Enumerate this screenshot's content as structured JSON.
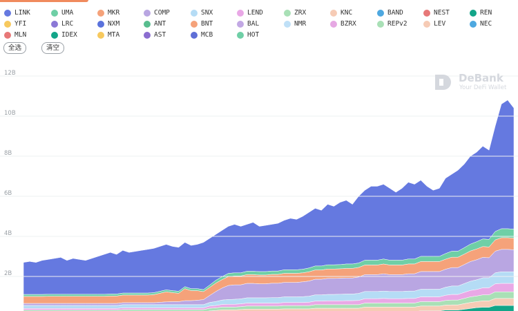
{
  "legend": [
    {
      "name": "LINK",
      "color": "#6579e0"
    },
    {
      "name": "UMA",
      "color": "#6fcfa6"
    },
    {
      "name": "MKR",
      "color": "#f5a27a"
    },
    {
      "name": "COMP",
      "color": "#b9a6e2"
    },
    {
      "name": "SNX",
      "color": "#b5dcf5"
    },
    {
      "name": "LEND",
      "color": "#e9a8e6"
    },
    {
      "name": "ZRX",
      "color": "#a9e0b6"
    },
    {
      "name": "KNC",
      "color": "#f6cbb5"
    },
    {
      "name": "BAND",
      "color": "#4ea8e0"
    },
    {
      "name": "NEST",
      "color": "#e77878"
    },
    {
      "name": "REN",
      "color": "#13a589"
    },
    {
      "name": "YFI",
      "color": "#f7c95e"
    },
    {
      "name": "LRC",
      "color": "#8b78d6"
    },
    {
      "name": "NXM",
      "color": "#5a72dc"
    },
    {
      "name": "ANT",
      "color": "#58bd8e"
    },
    {
      "name": "BNT",
      "color": "#f5a27a"
    },
    {
      "name": "BAL",
      "color": "#c2a8e4"
    },
    {
      "name": "NMR",
      "color": "#bfe0f7"
    },
    {
      "name": "BZRX",
      "color": "#e6a8e3"
    },
    {
      "name": "REPv2",
      "color": "#a9e0b6"
    },
    {
      "name": "LEV",
      "color": "#f6cbb5"
    },
    {
      "name": "NEC",
      "color": "#4ea8e0"
    },
    {
      "name": "MLN",
      "color": "#e77878"
    },
    {
      "name": "IDEX",
      "color": "#13a589"
    },
    {
      "name": "MTA",
      "color": "#f7c95e"
    },
    {
      "name": "AST",
      "color": "#8b6dd0"
    },
    {
      "name": "MCB",
      "color": "#5f6fd6"
    },
    {
      "name": "HOT",
      "color": "#6fcfa6"
    }
  ],
  "buttons": {
    "select_all": "全选",
    "clear": "清空"
  },
  "watermark": {
    "title": "DeBank",
    "subtitle": "Your DeFi Wallet"
  },
  "chart_data": {
    "type": "area",
    "stacked": true,
    "ylabel": "",
    "ylim": [
      0,
      12
    ],
    "yticks": [
      "2B",
      "4B",
      "6B",
      "8B",
      "10B",
      "12B"
    ],
    "x_points": 80,
    "total": [
      2.7,
      2.75,
      2.7,
      2.8,
      2.85,
      2.9,
      2.95,
      2.8,
      2.9,
      2.85,
      2.8,
      2.9,
      3.0,
      3.1,
      3.2,
      3.1,
      3.3,
      3.2,
      3.25,
      3.3,
      3.35,
      3.4,
      3.5,
      3.6,
      3.5,
      3.45,
      3.7,
      3.55,
      3.6,
      3.7,
      3.9,
      4.1,
      4.3,
      4.5,
      4.6,
      4.5,
      4.6,
      4.7,
      4.5,
      4.55,
      4.6,
      4.65,
      4.8,
      4.9,
      4.85,
      5.0,
      5.2,
      5.4,
      5.3,
      5.6,
      5.5,
      5.7,
      5.8,
      5.6,
      6.0,
      6.3,
      6.5,
      6.5,
      6.6,
      6.4,
      6.2,
      6.4,
      6.7,
      6.6,
      6.8,
      6.5,
      6.3,
      6.4,
      6.9,
      7.1,
      7.3,
      7.6,
      8.0,
      8.2,
      8.5,
      8.3,
      9.5,
      10.6,
      10.8,
      10.4
    ],
    "series": [
      {
        "name": "BAND",
        "values": [
          0.05,
          0.05,
          0.05,
          0.05,
          0.05,
          0.05,
          0.05,
          0.05,
          0.05,
          0.05,
          0.05,
          0.05,
          0.05,
          0.05,
          0.05,
          0.05,
          0.06,
          0.06,
          0.06,
          0.06,
          0.06,
          0.06,
          0.06,
          0.06,
          0.06,
          0.06,
          0.06,
          0.06,
          0.06,
          0.06,
          0.06,
          0.06,
          0.07,
          0.07,
          0.07,
          0.07,
          0.08,
          0.08,
          0.08,
          0.08,
          0.08,
          0.08,
          0.08,
          0.08,
          0.08,
          0.08,
          0.08,
          0.09,
          0.09,
          0.09,
          0.09,
          0.09,
          0.09,
          0.09,
          0.09,
          0.1,
          0.1,
          0.1,
          0.1,
          0.1,
          0.1,
          0.1,
          0.1,
          0.1,
          0.1,
          0.1,
          0.1,
          0.1,
          0.12,
          0.12,
          0.12,
          0.14,
          0.15,
          0.16,
          0.16,
          0.16,
          0.2,
          0.2,
          0.2,
          0.2
        ]
      },
      {
        "name": "REN",
        "values": [
          0.05,
          0.05,
          0.05,
          0.05,
          0.05,
          0.05,
          0.05,
          0.05,
          0.05,
          0.05,
          0.05,
          0.05,
          0.05,
          0.05,
          0.05,
          0.05,
          0.05,
          0.05,
          0.05,
          0.05,
          0.05,
          0.05,
          0.05,
          0.05,
          0.05,
          0.05,
          0.05,
          0.05,
          0.05,
          0.05,
          0.08,
          0.1,
          0.1,
          0.1,
          0.1,
          0.12,
          0.12,
          0.12,
          0.12,
          0.12,
          0.12,
          0.12,
          0.12,
          0.12,
          0.12,
          0.12,
          0.12,
          0.12,
          0.12,
          0.12,
          0.12,
          0.12,
          0.12,
          0.12,
          0.12,
          0.15,
          0.15,
          0.15,
          0.15,
          0.15,
          0.15,
          0.15,
          0.15,
          0.15,
          0.18,
          0.18,
          0.18,
          0.18,
          0.2,
          0.2,
          0.2,
          0.22,
          0.25,
          0.28,
          0.3,
          0.3,
          0.35,
          0.35,
          0.35,
          0.35
        ]
      },
      {
        "name": "KNC",
        "values": [
          0.12,
          0.12,
          0.12,
          0.12,
          0.12,
          0.12,
          0.12,
          0.12,
          0.12,
          0.12,
          0.12,
          0.12,
          0.12,
          0.12,
          0.12,
          0.12,
          0.12,
          0.12,
          0.12,
          0.12,
          0.12,
          0.12,
          0.12,
          0.12,
          0.12,
          0.12,
          0.12,
          0.12,
          0.12,
          0.12,
          0.14,
          0.14,
          0.16,
          0.16,
          0.16,
          0.16,
          0.17,
          0.17,
          0.17,
          0.17,
          0.17,
          0.17,
          0.18,
          0.18,
          0.18,
          0.18,
          0.18,
          0.2,
          0.2,
          0.2,
          0.2,
          0.2,
          0.2,
          0.2,
          0.2,
          0.22,
          0.22,
          0.22,
          0.22,
          0.22,
          0.22,
          0.22,
          0.22,
          0.22,
          0.24,
          0.24,
          0.24,
          0.24,
          0.25,
          0.26,
          0.26,
          0.28,
          0.3,
          0.3,
          0.32,
          0.32,
          0.35,
          0.35,
          0.35,
          0.35
        ]
      },
      {
        "name": "ZRX",
        "values": [
          0.1,
          0.1,
          0.1,
          0.1,
          0.1,
          0.1,
          0.1,
          0.1,
          0.1,
          0.1,
          0.1,
          0.1,
          0.1,
          0.1,
          0.1,
          0.1,
          0.11,
          0.11,
          0.11,
          0.11,
          0.11,
          0.11,
          0.11,
          0.11,
          0.11,
          0.11,
          0.11,
          0.11,
          0.11,
          0.11,
          0.13,
          0.13,
          0.14,
          0.14,
          0.14,
          0.14,
          0.15,
          0.15,
          0.15,
          0.15,
          0.15,
          0.15,
          0.16,
          0.16,
          0.16,
          0.16,
          0.16,
          0.18,
          0.18,
          0.18,
          0.18,
          0.18,
          0.18,
          0.18,
          0.18,
          0.2,
          0.2,
          0.2,
          0.2,
          0.2,
          0.2,
          0.2,
          0.2,
          0.2,
          0.22,
          0.22,
          0.22,
          0.22,
          0.23,
          0.24,
          0.24,
          0.26,
          0.28,
          0.28,
          0.3,
          0.3,
          0.33,
          0.33,
          0.33,
          0.33
        ]
      },
      {
        "name": "LEND",
        "values": [
          0.08,
          0.08,
          0.08,
          0.08,
          0.08,
          0.08,
          0.08,
          0.08,
          0.08,
          0.08,
          0.08,
          0.08,
          0.08,
          0.08,
          0.08,
          0.08,
          0.09,
          0.09,
          0.09,
          0.09,
          0.09,
          0.09,
          0.09,
          0.09,
          0.09,
          0.09,
          0.09,
          0.09,
          0.09,
          0.09,
          0.11,
          0.12,
          0.13,
          0.14,
          0.14,
          0.14,
          0.15,
          0.15,
          0.15,
          0.15,
          0.15,
          0.15,
          0.16,
          0.16,
          0.16,
          0.16,
          0.17,
          0.18,
          0.18,
          0.19,
          0.19,
          0.19,
          0.2,
          0.2,
          0.21,
          0.22,
          0.22,
          0.22,
          0.23,
          0.22,
          0.22,
          0.22,
          0.23,
          0.23,
          0.24,
          0.24,
          0.24,
          0.24,
          0.26,
          0.28,
          0.28,
          0.3,
          0.32,
          0.33,
          0.35,
          0.35,
          0.4,
          0.42,
          0.42,
          0.42
        ]
      },
      {
        "name": "SNX",
        "values": [
          0.15,
          0.15,
          0.15,
          0.15,
          0.15,
          0.15,
          0.15,
          0.15,
          0.15,
          0.15,
          0.15,
          0.15,
          0.15,
          0.15,
          0.15,
          0.15,
          0.16,
          0.16,
          0.16,
          0.16,
          0.16,
          0.16,
          0.16,
          0.16,
          0.16,
          0.16,
          0.16,
          0.16,
          0.16,
          0.16,
          0.18,
          0.2,
          0.22,
          0.24,
          0.25,
          0.25,
          0.26,
          0.26,
          0.26,
          0.26,
          0.27,
          0.27,
          0.28,
          0.28,
          0.28,
          0.29,
          0.3,
          0.31,
          0.31,
          0.32,
          0.32,
          0.33,
          0.33,
          0.33,
          0.35,
          0.36,
          0.36,
          0.36,
          0.37,
          0.36,
          0.36,
          0.36,
          0.37,
          0.37,
          0.38,
          0.38,
          0.38,
          0.38,
          0.4,
          0.42,
          0.42,
          0.44,
          0.46,
          0.48,
          0.5,
          0.5,
          0.55,
          0.58,
          0.58,
          0.58
        ]
      },
      {
        "name": "COMP",
        "values": [
          0.1,
          0.1,
          0.1,
          0.1,
          0.1,
          0.1,
          0.1,
          0.1,
          0.1,
          0.1,
          0.1,
          0.1,
          0.1,
          0.1,
          0.1,
          0.1,
          0.1,
          0.1,
          0.1,
          0.1,
          0.1,
          0.1,
          0.12,
          0.14,
          0.15,
          0.15,
          0.2,
          0.2,
          0.22,
          0.25,
          0.35,
          0.5,
          0.6,
          0.7,
          0.72,
          0.7,
          0.72,
          0.72,
          0.7,
          0.7,
          0.72,
          0.72,
          0.72,
          0.72,
          0.72,
          0.74,
          0.76,
          0.78,
          0.78,
          0.8,
          0.8,
          0.8,
          0.8,
          0.8,
          0.82,
          0.84,
          0.84,
          0.84,
          0.86,
          0.84,
          0.84,
          0.84,
          0.86,
          0.86,
          0.88,
          0.88,
          0.88,
          0.88,
          0.9,
          0.92,
          0.92,
          0.95,
          0.98,
          1.0,
          1.02,
          1.0,
          1.08,
          1.12,
          1.12,
          1.1
        ]
      },
      {
        "name": "MKR",
        "values": [
          0.35,
          0.35,
          0.35,
          0.35,
          0.36,
          0.36,
          0.36,
          0.36,
          0.36,
          0.36,
          0.36,
          0.36,
          0.36,
          0.36,
          0.37,
          0.37,
          0.38,
          0.38,
          0.38,
          0.38,
          0.38,
          0.4,
          0.45,
          0.5,
          0.45,
          0.42,
          0.6,
          0.5,
          0.48,
          0.4,
          0.4,
          0.42,
          0.42,
          0.44,
          0.44,
          0.44,
          0.44,
          0.44,
          0.44,
          0.44,
          0.44,
          0.44,
          0.45,
          0.45,
          0.45,
          0.45,
          0.46,
          0.46,
          0.46,
          0.47,
          0.47,
          0.47,
          0.48,
          0.48,
          0.48,
          0.48,
          0.48,
          0.48,
          0.49,
          0.48,
          0.48,
          0.48,
          0.49,
          0.49,
          0.5,
          0.5,
          0.5,
          0.5,
          0.5,
          0.52,
          0.52,
          0.52,
          0.53,
          0.54,
          0.54,
          0.54,
          0.56,
          0.58,
          0.58,
          0.58
        ]
      },
      {
        "name": "UMA",
        "values": [
          0.1,
          0.1,
          0.1,
          0.1,
          0.1,
          0.1,
          0.1,
          0.1,
          0.1,
          0.1,
          0.1,
          0.1,
          0.1,
          0.1,
          0.1,
          0.1,
          0.1,
          0.1,
          0.1,
          0.1,
          0.1,
          0.1,
          0.1,
          0.1,
          0.1,
          0.1,
          0.1,
          0.1,
          0.1,
          0.1,
          0.12,
          0.14,
          0.15,
          0.16,
          0.16,
          0.16,
          0.17,
          0.17,
          0.17,
          0.17,
          0.17,
          0.17,
          0.18,
          0.18,
          0.18,
          0.18,
          0.19,
          0.2,
          0.2,
          0.21,
          0.21,
          0.21,
          0.22,
          0.22,
          0.22,
          0.24,
          0.24,
          0.24,
          0.25,
          0.24,
          0.24,
          0.24,
          0.25,
          0.25,
          0.26,
          0.26,
          0.26,
          0.26,
          0.28,
          0.3,
          0.3,
          0.32,
          0.34,
          0.36,
          0.38,
          0.38,
          0.42,
          0.45,
          0.45,
          0.45
        ]
      }
    ]
  }
}
